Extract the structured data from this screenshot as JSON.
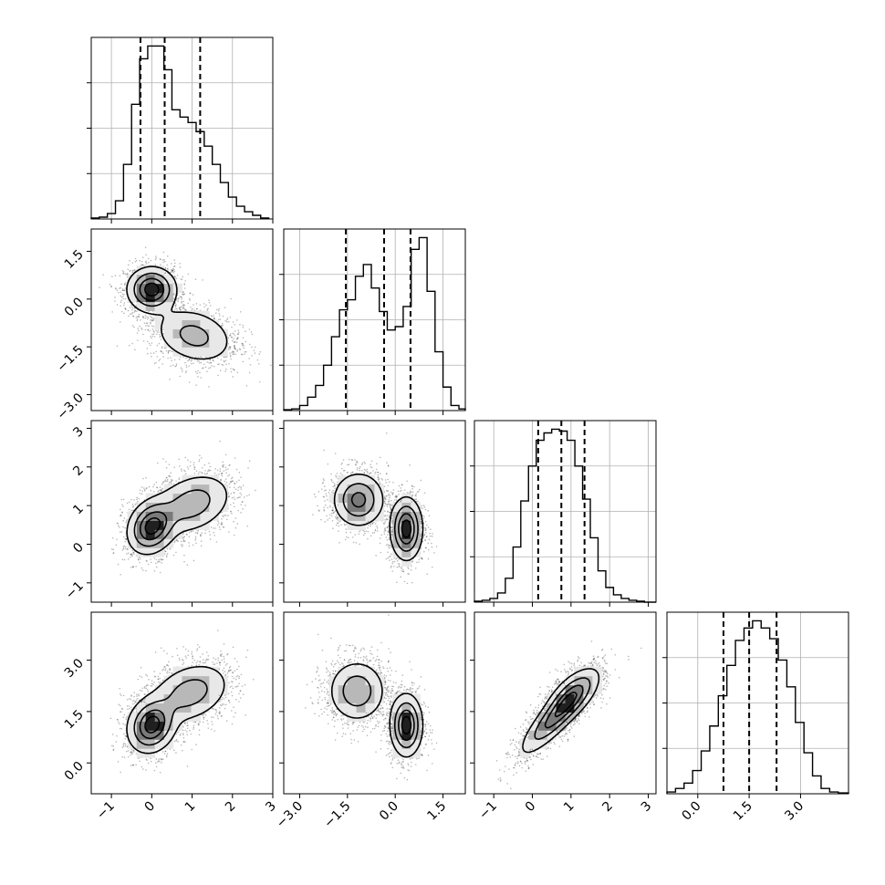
{
  "chart_data": {
    "type": "corner",
    "grid": true,
    "params": [
      {
        "range": [
          -1.5,
          3.0
        ],
        "ticks": [
          -1,
          0,
          1,
          2,
          3
        ],
        "tick_labels": [
          "−1",
          "0",
          "1",
          "2",
          "3"
        ]
      },
      {
        "range": [
          -3.5,
          2.2
        ],
        "ticks": [
          -3.0,
          -1.5,
          0.0,
          1.5
        ],
        "tick_labels": [
          "−3.0",
          "−1.5",
          "0.0",
          "1.5"
        ]
      },
      {
        "range": [
          -1.5,
          3.2
        ],
        "ticks": [
          -1,
          0,
          1,
          2,
          3
        ],
        "tick_labels": [
          "−1",
          "0",
          "1",
          "2",
          "3"
        ]
      },
      {
        "range": [
          -0.9,
          4.4
        ],
        "ticks": [
          0.0,
          1.5,
          3.0
        ],
        "tick_labels": [
          "0.0",
          "1.5",
          "3.0"
        ]
      }
    ],
    "histograms": [
      {
        "param": 0,
        "quantiles": [
          -0.28,
          0.32,
          1.2
        ],
        "bins": [
          -1.5,
          -1.3,
          -1.1,
          -0.9,
          -0.7,
          -0.5,
          -0.3,
          -0.1,
          0.1,
          0.3,
          0.5,
          0.7,
          0.9,
          1.1,
          1.3,
          1.5,
          1.7,
          1.9,
          2.1,
          2.3,
          2.5,
          2.7,
          2.9
        ],
        "counts": [
          0.5,
          1,
          3,
          10,
          30,
          63,
          88,
          95,
          95,
          82,
          60,
          56,
          53,
          48,
          40,
          30,
          20,
          12,
          7,
          4,
          2,
          0.5
        ]
      },
      {
        "param": 1,
        "quantiles": [
          -1.55,
          -0.35,
          0.48
        ],
        "bins": [
          -3.5,
          -3.25,
          -3.0,
          -2.75,
          -2.5,
          -2.25,
          -2.0,
          -1.75,
          -1.5,
          -1.25,
          -1.0,
          -0.75,
          -0.5,
          -0.25,
          0.0,
          0.25,
          0.5,
          0.75,
          1.0,
          1.25,
          1.5,
          1.75,
          2.0,
          2.2
        ],
        "counts": [
          0.5,
          1,
          3,
          8,
          15,
          27,
          44,
          60,
          66,
          80,
          87,
          73,
          59,
          48,
          50,
          62,
          96,
          103,
          71,
          35,
          14,
          3,
          1
        ]
      },
      {
        "param": 2,
        "quantiles": [
          0.15,
          0.75,
          1.35
        ],
        "bins": [
          -1.5,
          -1.3,
          -1.1,
          -0.9,
          -0.7,
          -0.5,
          -0.3,
          -0.1,
          0.1,
          0.3,
          0.5,
          0.7,
          0.9,
          1.1,
          1.3,
          1.5,
          1.7,
          1.9,
          2.1,
          2.3,
          2.5,
          2.7,
          2.9,
          3.2
        ],
        "counts": [
          0.5,
          1,
          2,
          5,
          13,
          30,
          55,
          74,
          88,
          92,
          94,
          93,
          88,
          74,
          56,
          35,
          17,
          8,
          4,
          2,
          1,
          0.5,
          0
        ]
      },
      {
        "param": 3,
        "quantiles": [
          0.75,
          1.5,
          2.3
        ],
        "bins": [
          -0.9,
          -0.65,
          -0.4,
          -0.15,
          0.1,
          0.35,
          0.6,
          0.85,
          1.1,
          1.35,
          1.6,
          1.85,
          2.1,
          2.35,
          2.6,
          2.85,
          3.1,
          3.35,
          3.6,
          3.85,
          4.1,
          4.4
        ],
        "counts": [
          1,
          3,
          6,
          13,
          24,
          38,
          55,
          72,
          86,
          93,
          97,
          93,
          87,
          75,
          60,
          40,
          23,
          10,
          3,
          1,
          0.5
        ]
      }
    ],
    "pairs": [
      {
        "x": 0,
        "y": 1,
        "components": [
          {
            "mx": 0.0,
            "my": 0.3,
            "sx": 0.3,
            "sy": 0.35,
            "rho": 0.0,
            "w": 0.52
          },
          {
            "mx": 1.05,
            "my": -1.15,
            "sx": 0.5,
            "sy": 0.45,
            "rho": -0.25,
            "w": 0.48
          }
        ]
      },
      {
        "x": 0,
        "y": 2,
        "components": [
          {
            "mx": 0.0,
            "my": 0.45,
            "sx": 0.3,
            "sy": 0.35,
            "rho": 0.2,
            "w": 0.5
          },
          {
            "mx": 1.0,
            "my": 1.05,
            "sx": 0.5,
            "sy": 0.4,
            "rho": 0.3,
            "w": 0.5
          }
        ]
      },
      {
        "x": 1,
        "y": 2,
        "components": [
          {
            "mx": -1.15,
            "my": 1.15,
            "sx": 0.4,
            "sy": 0.35,
            "rho": 0.0,
            "w": 0.5
          },
          {
            "mx": 0.35,
            "my": 0.4,
            "sx": 0.25,
            "sy": 0.4,
            "rho": 0.0,
            "w": 0.5
          }
        ]
      },
      {
        "x": 0,
        "y": 3,
        "components": [
          {
            "mx": 0.0,
            "my": 1.1,
            "sx": 0.3,
            "sy": 0.4,
            "rho": 0.15,
            "w": 0.52
          },
          {
            "mx": 0.95,
            "my": 2.05,
            "sx": 0.5,
            "sy": 0.45,
            "rho": 0.3,
            "w": 0.48
          }
        ]
      },
      {
        "x": 1,
        "y": 3,
        "components": [
          {
            "mx": -1.2,
            "my": 2.1,
            "sx": 0.45,
            "sy": 0.45,
            "rho": 0.0,
            "w": 0.5
          },
          {
            "mx": 0.35,
            "my": 1.1,
            "sx": 0.25,
            "sy": 0.45,
            "rho": 0.0,
            "w": 0.5
          }
        ]
      },
      {
        "x": 2,
        "y": 3,
        "components": [
          {
            "mx": 0.6,
            "my": 1.35,
            "sx": 0.45,
            "sy": 0.55,
            "rho": 0.85,
            "w": 0.6
          },
          {
            "mx": 1.05,
            "my": 2.0,
            "sx": 0.35,
            "sy": 0.4,
            "rho": 0.6,
            "w": 0.4
          }
        ]
      }
    ]
  }
}
